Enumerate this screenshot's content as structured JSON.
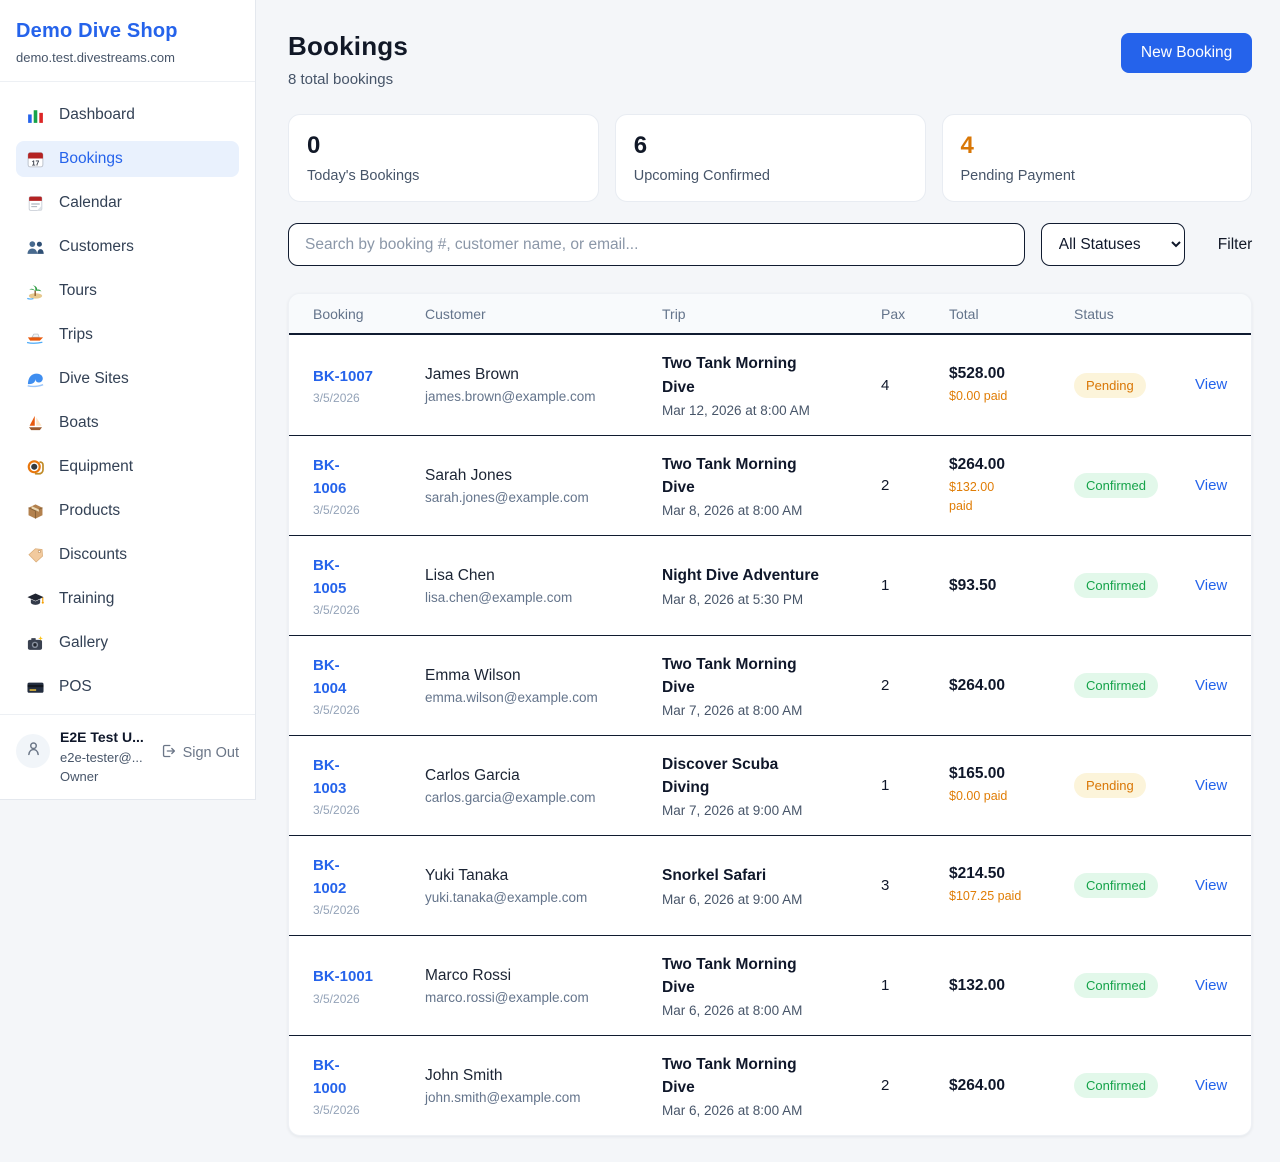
{
  "sidebar": {
    "brand": {
      "title": "Demo Dive Shop",
      "domain": "demo.test.divestreams.com"
    },
    "items": [
      {
        "label": "Dashboard",
        "icon": "bar-chart",
        "active": false
      },
      {
        "label": "Bookings",
        "icon": "calendar-17",
        "active": true
      },
      {
        "label": "Calendar",
        "icon": "tear-calendar",
        "active": false
      },
      {
        "label": "Customers",
        "icon": "people",
        "active": false
      },
      {
        "label": "Tours",
        "icon": "island",
        "active": false
      },
      {
        "label": "Trips",
        "icon": "speedboat",
        "active": false
      },
      {
        "label": "Dive Sites",
        "icon": "wave",
        "active": false
      },
      {
        "label": "Boats",
        "icon": "sailboat",
        "active": false
      },
      {
        "label": "Equipment",
        "icon": "dive-mask",
        "active": false
      },
      {
        "label": "Products",
        "icon": "package",
        "active": false
      },
      {
        "label": "Discounts",
        "icon": "tag",
        "active": false
      },
      {
        "label": "Training",
        "icon": "grad-cap",
        "active": false
      },
      {
        "label": "Gallery",
        "icon": "camera",
        "active": false
      },
      {
        "label": "POS",
        "icon": "credit-card",
        "active": false
      }
    ],
    "user": {
      "name": "E2E Test U...",
      "email": "e2e-tester@...",
      "role": "Owner",
      "sign_out_label": "Sign Out"
    }
  },
  "header": {
    "title": "Bookings",
    "subtitle": "8 total bookings",
    "new_booking_label": "New Booking"
  },
  "stats": [
    {
      "value": "0",
      "label": "Today's Bookings",
      "accent": "#111827"
    },
    {
      "value": "6",
      "label": "Upcoming Confirmed",
      "accent": "#111827"
    },
    {
      "value": "4",
      "label": "Pending Payment",
      "accent": "#d97706"
    }
  ],
  "filters": {
    "search_placeholder": "Search by booking #, customer name, or email...",
    "status_selected": "All Statuses",
    "filter_label": "Filter"
  },
  "table": {
    "columns": [
      "Booking",
      "Customer",
      "Trip",
      "Pax",
      "Total",
      "Status"
    ],
    "view_label": "View",
    "rows": [
      {
        "number": "BK-1007",
        "date": "3/5/2026",
        "customer": "James Brown",
        "email": "james.brown@example.com",
        "trip": "Two Tank Morning\nDive",
        "trip_time": "Mar 12, 2026 at 8:00 AM",
        "pax": "4",
        "total": "$528.00",
        "paid": "$0.00 paid",
        "status": "Pending"
      },
      {
        "number": "BK-\n1006",
        "date": "3/5/2026",
        "customer": "Sarah Jones",
        "email": "sarah.jones@example.com",
        "trip": "Two Tank Morning\nDive",
        "trip_time": "Mar 8, 2026 at 8:00 AM",
        "pax": "2",
        "total": "$264.00",
        "paid": "$132.00\npaid",
        "status": "Confirmed"
      },
      {
        "number": "BK-\n1005",
        "date": "3/5/2026",
        "customer": "Lisa Chen",
        "email": "lisa.chen@example.com",
        "trip": "Night Dive Adventure",
        "trip_time": "Mar 8, 2026 at 5:30 PM",
        "pax": "1",
        "total": "$93.50",
        "paid": "",
        "status": "Confirmed"
      },
      {
        "number": "BK-\n1004",
        "date": "3/5/2026",
        "customer": "Emma Wilson",
        "email": "emma.wilson@example.com",
        "trip": "Two Tank Morning\nDive",
        "trip_time": "Mar 7, 2026 at 8:00 AM",
        "pax": "2",
        "total": "$264.00",
        "paid": "",
        "status": "Confirmed"
      },
      {
        "number": "BK-\n1003",
        "date": "3/5/2026",
        "customer": "Carlos Garcia",
        "email": "carlos.garcia@example.com",
        "trip": "Discover Scuba\nDiving",
        "trip_time": "Mar 7, 2026 at 9:00 AM",
        "pax": "1",
        "total": "$165.00",
        "paid": "$0.00 paid",
        "status": "Pending"
      },
      {
        "number": "BK-\n1002",
        "date": "3/5/2026",
        "customer": "Yuki Tanaka",
        "email": "yuki.tanaka@example.com",
        "trip": "Snorkel Safari",
        "trip_time": "Mar 6, 2026 at 9:00 AM",
        "pax": "3",
        "total": "$214.50",
        "paid": "$107.25 paid",
        "status": "Confirmed"
      },
      {
        "number": "BK-1001",
        "date": "3/5/2026",
        "customer": "Marco Rossi",
        "email": "marco.rossi@example.com",
        "trip": "Two Tank Morning\nDive",
        "trip_time": "Mar 6, 2026 at 8:00 AM",
        "pax": "1",
        "total": "$132.00",
        "paid": "",
        "status": "Confirmed"
      },
      {
        "number": "BK-\n1000",
        "date": "3/5/2026",
        "customer": "John Smith",
        "email": "john.smith@example.com",
        "trip": "Two Tank Morning\nDive",
        "trip_time": "Mar 6, 2026 at 8:00 AM",
        "pax": "2",
        "total": "$264.00",
        "paid": "",
        "status": "Confirmed"
      }
    ]
  },
  "colors": {
    "brand": "#2563eb",
    "pending_bg": "#fcf4da",
    "pending_text": "#d97706",
    "confirmed_bg": "#e2f8ea",
    "confirmed_text": "#16a34a",
    "paid_orange": "#e07d06"
  }
}
